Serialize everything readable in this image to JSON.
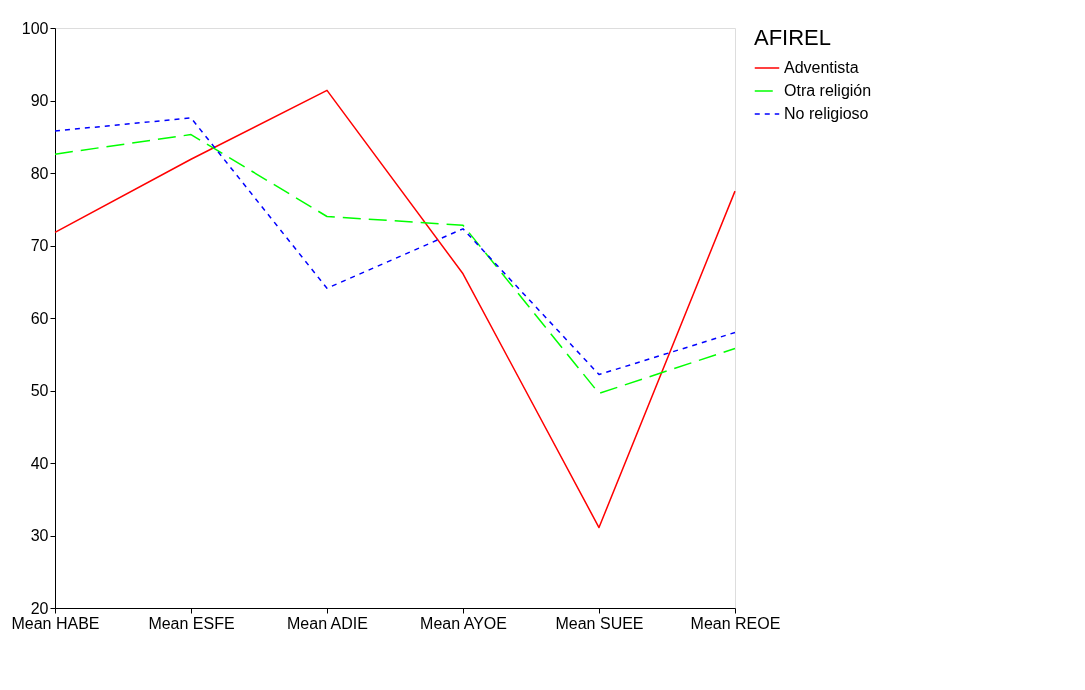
{
  "chart_data": {
    "type": "line",
    "categories": [
      "Mean HABE",
      "Mean ESFE",
      "Mean ADIE",
      "Mean AYOE",
      "Mean SUEE",
      "Mean REOE"
    ],
    "series": [
      {
        "name": "Adventista",
        "color": "#ff0000",
        "line_style": "solid",
        "values": [
          71.8,
          81.9,
          91.4,
          66.1,
          31.1,
          77.5
        ]
      },
      {
        "name": "Otra religión",
        "color": "#00ff00",
        "line_style": "dashed",
        "values": [
          82.6,
          85.3,
          74.0,
          72.8,
          49.6,
          55.8
        ]
      },
      {
        "name": "No religioso",
        "color": "#0000ff",
        "line_style": "dotted",
        "values": [
          85.8,
          87.6,
          64.1,
          72.3,
          52.2,
          58.0
        ]
      }
    ],
    "legend_title": "AFIREL",
    "legend": "right",
    "ylim": [
      20,
      100
    ],
    "yticks": [
      20,
      30,
      40,
      50,
      60,
      70,
      80,
      90,
      100
    ],
    "grid": false,
    "marker": "none"
  }
}
